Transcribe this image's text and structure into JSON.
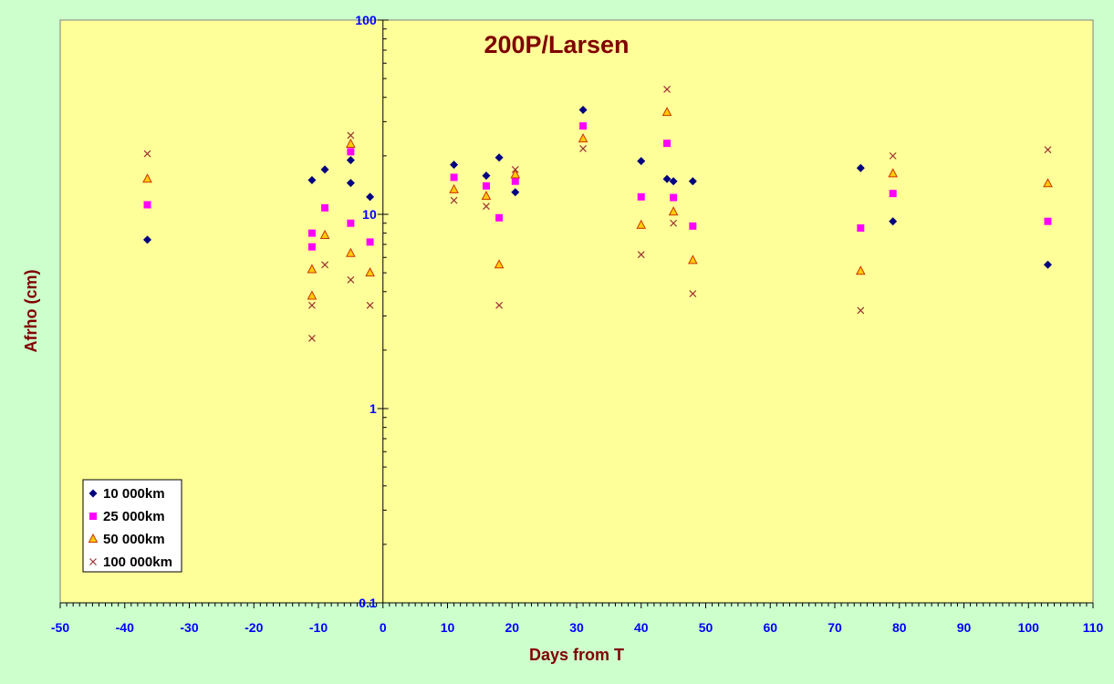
{
  "chart_data": {
    "type": "scatter",
    "title": "200P/Larsen",
    "xlabel": "Days from T",
    "ylabel": "Afrho (cm)",
    "xlim": [
      -50,
      110
    ],
    "ylim": [
      0.1,
      100
    ],
    "yscale": "log",
    "x_ticks": [
      -50,
      -40,
      -30,
      -20,
      -10,
      0,
      10,
      20,
      30,
      40,
      50,
      60,
      70,
      80,
      90,
      100,
      110
    ],
    "y_ticks": [
      0.1,
      1,
      10,
      100
    ],
    "y_tick_labels": [
      "0.1",
      "1",
      "10",
      "100"
    ],
    "grid": false,
    "legend_position": "bottom-left",
    "series": [
      {
        "name": "10 000km",
        "marker": "diamond",
        "color": "#000080",
        "points": [
          [
            -36.5,
            7.4
          ],
          [
            -11,
            15.0
          ],
          [
            -9,
            17.0
          ],
          [
            -5,
            19.0
          ],
          [
            -5,
            14.5
          ],
          [
            -2,
            12.3
          ],
          [
            11,
            18.0
          ],
          [
            16,
            15.8
          ],
          [
            18,
            19.6
          ],
          [
            20.5,
            13.0
          ],
          [
            31,
            34.5
          ],
          [
            40,
            18.8
          ],
          [
            44,
            15.2
          ],
          [
            45,
            14.8
          ],
          [
            48,
            14.8
          ],
          [
            74,
            17.3
          ],
          [
            79,
            9.2
          ],
          [
            103,
            5.5
          ]
        ]
      },
      {
        "name": "25 000km",
        "marker": "square",
        "color": "#ff00ff",
        "points": [
          [
            -36.5,
            11.2
          ],
          [
            -11,
            8.0
          ],
          [
            -11,
            6.8
          ],
          [
            -9,
            10.8
          ],
          [
            -5,
            21.0
          ],
          [
            -5,
            9.0
          ],
          [
            -2,
            7.2
          ],
          [
            11,
            15.5
          ],
          [
            16,
            14.0
          ],
          [
            18,
            9.6
          ],
          [
            20.5,
            14.8
          ],
          [
            31,
            28.5
          ],
          [
            40,
            12.3
          ],
          [
            44,
            23.2
          ],
          [
            45,
            12.2
          ],
          [
            48,
            8.7
          ],
          [
            74,
            8.5
          ],
          [
            79,
            12.8
          ],
          [
            103,
            9.2
          ]
        ]
      },
      {
        "name": "50 000km",
        "marker": "triangle",
        "color": "#ffcc00",
        "stroke": "#cc3300",
        "points": [
          [
            -36.5,
            15.2
          ],
          [
            -11,
            5.2
          ],
          [
            -11,
            3.8
          ],
          [
            -9,
            7.8
          ],
          [
            -5,
            23.0
          ],
          [
            -5,
            6.3
          ],
          [
            -2,
            5.0
          ],
          [
            11,
            13.4
          ],
          [
            16,
            12.4
          ],
          [
            18,
            5.5
          ],
          [
            20.5,
            16.0
          ],
          [
            31,
            24.5
          ],
          [
            40,
            8.8
          ],
          [
            44,
            33.5
          ],
          [
            45,
            10.3
          ],
          [
            48,
            5.8
          ],
          [
            74,
            5.1
          ],
          [
            79,
            16.2
          ],
          [
            103,
            14.4
          ]
        ]
      },
      {
        "name": "100 000km",
        "marker": "x",
        "color": "#993333",
        "points": [
          [
            -36.5,
            20.5
          ],
          [
            -11,
            3.4
          ],
          [
            -11,
            2.3
          ],
          [
            -9,
            5.5
          ],
          [
            -5,
            25.5
          ],
          [
            -5,
            4.6
          ],
          [
            -2,
            3.4
          ],
          [
            11,
            11.8
          ],
          [
            16,
            11.0
          ],
          [
            18,
            3.4
          ],
          [
            20.5,
            17.0
          ],
          [
            31,
            21.8
          ],
          [
            40,
            6.2
          ],
          [
            44,
            44.0
          ],
          [
            45,
            9.0
          ],
          [
            48,
            3.9
          ],
          [
            74,
            3.2
          ],
          [
            79,
            20.0
          ],
          [
            103,
            21.5
          ]
        ]
      }
    ]
  }
}
